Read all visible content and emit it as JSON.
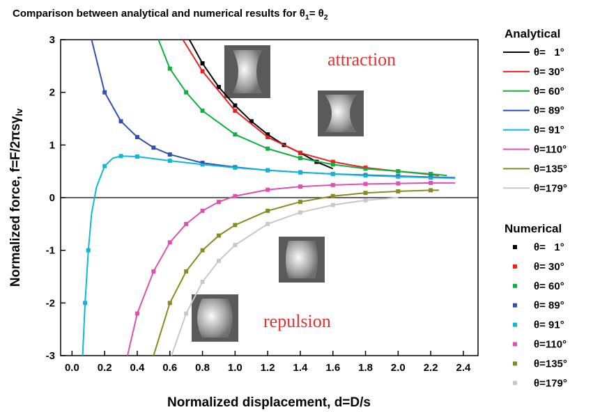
{
  "chart_data": {
    "type": "line",
    "title": [
      "Comparison between analytical and numerical results for θ",
      "1",
      "= θ",
      "2"
    ],
    "xlabel": "Normalized displacement, d=D/s",
    "ylabel": [
      "Normalized force, f=F/2πsγ",
      "lv"
    ],
    "xlim": [
      -0.07,
      2.49
    ],
    "ylim": [
      -3,
      3
    ],
    "xticks": [
      {
        "value": 0,
        "label": "0.0"
      },
      {
        "value": 0.2,
        "label": "0.2"
      },
      {
        "value": 0.4,
        "label": "0.4"
      },
      {
        "value": 0.6,
        "label": "0.6"
      },
      {
        "value": 0.8,
        "label": "0.8"
      },
      {
        "value": 1.0,
        "label": "1.0"
      },
      {
        "value": 1.2,
        "label": "1.2"
      },
      {
        "value": 1.4,
        "label": "1.4"
      },
      {
        "value": 1.6,
        "label": "1.6"
      },
      {
        "value": 1.8,
        "label": "1.8"
      },
      {
        "value": 2.0,
        "label": "2.0"
      },
      {
        "value": 2.2,
        "label": "2.2"
      },
      {
        "value": 2.4,
        "label": "2.4"
      }
    ],
    "yticks": [
      -3,
      -2,
      -1,
      0,
      1,
      2,
      3
    ],
    "annotations": [
      "attraction",
      "repulsion"
    ],
    "analytical": {
      "title": "Analytical",
      "series": [
        {
          "name": "θ=   1°",
          "color": "#000000",
          "x": [
            0.72,
            0.8,
            0.9,
            1.0,
            1.1,
            1.2,
            1.3,
            1.4,
            1.5,
            1.6
          ],
          "values": [
            3,
            2.55,
            2.1,
            1.75,
            1.45,
            1.2,
            1.0,
            0.85,
            0.68,
            0.55
          ]
        },
        {
          "name": "θ= 30°",
          "color": "#f02020",
          "x": [
            0.68,
            0.8,
            1.0,
            1.2,
            1.4,
            1.6,
            1.8,
            2.0,
            2.2,
            2.25
          ],
          "values": [
            3,
            2.4,
            1.65,
            1.15,
            0.85,
            0.68,
            0.57,
            0.5,
            0.44,
            0.42
          ]
        },
        {
          "name": "θ= 60°",
          "color": "#10b040",
          "x": [
            0.53,
            0.6,
            0.7,
            0.8,
            1.0,
            1.2,
            1.4,
            1.6,
            1.8,
            2.0,
            2.2,
            2.3
          ],
          "values": [
            3,
            2.45,
            2.0,
            1.65,
            1.2,
            0.93,
            0.75,
            0.63,
            0.55,
            0.5,
            0.45,
            0.42
          ]
        },
        {
          "name": "θ= 89°",
          "color": "#3050b0",
          "x": [
            0.12,
            0.2,
            0.3,
            0.4,
            0.5,
            0.6,
            0.8,
            1.0,
            1.2,
            1.4,
            1.6,
            1.8,
            2.0,
            2.2,
            2.35
          ],
          "values": [
            3,
            2.0,
            1.45,
            1.15,
            0.95,
            0.82,
            0.66,
            0.58,
            0.52,
            0.48,
            0.45,
            0.43,
            0.41,
            0.39,
            0.38
          ]
        },
        {
          "name": "θ= 91°",
          "color": "#10b8d8",
          "x": [
            0.065,
            0.08,
            0.1,
            0.12,
            0.15,
            0.2,
            0.25,
            0.3,
            0.4,
            0.6,
            0.8,
            1.0,
            1.2,
            1.4,
            1.6,
            1.8,
            2.0,
            2.2,
            2.35
          ],
          "values": [
            -3,
            -2.0,
            -1.0,
            -0.3,
            0.2,
            0.6,
            0.75,
            0.79,
            0.78,
            0.7,
            0.63,
            0.57,
            0.52,
            0.48,
            0.45,
            0.42,
            0.4,
            0.38,
            0.37
          ]
        },
        {
          "name": "θ=110°",
          "color": "#e050b0",
          "x": [
            0.34,
            0.4,
            0.5,
            0.6,
            0.7,
            0.8,
            0.9,
            1.0,
            1.2,
            1.4,
            1.6,
            1.8,
            2.0,
            2.2,
            2.35
          ],
          "values": [
            -3,
            -2.2,
            -1.4,
            -0.85,
            -0.5,
            -0.25,
            -0.08,
            0.03,
            0.15,
            0.21,
            0.24,
            0.26,
            0.27,
            0.28,
            0.28
          ]
        },
        {
          "name": "θ=135°",
          "color": "#8a8a20",
          "x": [
            0.5,
            0.6,
            0.7,
            0.8,
            0.9,
            1.0,
            1.2,
            1.4,
            1.6,
            1.8,
            2.0,
            2.2,
            2.25
          ],
          "values": [
            -3,
            -2.0,
            -1.4,
            -1.0,
            -0.72,
            -0.52,
            -0.25,
            -0.08,
            0.03,
            0.09,
            0.12,
            0.14,
            0.14
          ]
        },
        {
          "name": "θ=179°",
          "color": "#c8c8c8",
          "x": [
            0.61,
            0.7,
            0.8,
            0.9,
            1.0,
            1.2,
            1.4,
            1.6,
            1.8,
            2.0
          ],
          "values": [
            -3,
            -2.2,
            -1.6,
            -1.2,
            -0.9,
            -0.5,
            -0.28,
            -0.14,
            -0.05,
            0.0
          ]
        }
      ]
    },
    "numerical": {
      "title": "Numerical",
      "series": [
        {
          "name": "θ=   1°",
          "color": "#000000",
          "x": [
            0.8,
            0.9,
            1.0,
            1.1,
            1.2,
            1.3,
            1.4,
            1.5
          ],
          "values": [
            2.55,
            2.1,
            1.75,
            1.45,
            1.2,
            1.0,
            0.85,
            0.68
          ]
        },
        {
          "name": "θ= 30°",
          "color": "#f02020",
          "x": [
            0.8,
            1.0,
            1.2,
            1.4,
            1.6,
            1.8,
            2.0,
            2.2
          ],
          "values": [
            2.4,
            1.65,
            1.15,
            0.85,
            0.68,
            0.57,
            0.5,
            0.44
          ]
        },
        {
          "name": "θ= 60°",
          "color": "#10b040",
          "x": [
            0.6,
            0.7,
            0.8,
            1.0,
            1.2,
            1.4,
            1.6,
            1.8,
            2.0,
            2.2
          ],
          "values": [
            2.45,
            2.0,
            1.65,
            1.2,
            0.93,
            0.75,
            0.63,
            0.55,
            0.5,
            0.45
          ]
        },
        {
          "name": "θ= 89°",
          "color": "#3050b0",
          "x": [
            0.2,
            0.3,
            0.4,
            0.5,
            0.6,
            0.8,
            1.0,
            1.2,
            1.4,
            1.6,
            1.8,
            2.0,
            2.2
          ],
          "values": [
            2.0,
            1.45,
            1.15,
            0.95,
            0.82,
            0.66,
            0.58,
            0.52,
            0.48,
            0.45,
            0.43,
            0.41,
            0.39
          ]
        },
        {
          "name": "θ= 91°",
          "color": "#10b8d8",
          "x": [
            0.08,
            0.1,
            0.2,
            0.3,
            0.4,
            0.6,
            0.8,
            1.0,
            1.2,
            1.4,
            1.6,
            1.8,
            2.0,
            2.2
          ],
          "values": [
            -2.0,
            -1.0,
            0.6,
            0.79,
            0.78,
            0.7,
            0.63,
            0.57,
            0.52,
            0.48,
            0.45,
            0.42,
            0.4,
            0.38
          ]
        },
        {
          "name": "θ=110°",
          "color": "#e050b0",
          "x": [
            0.4,
            0.5,
            0.6,
            0.7,
            0.8,
            0.9,
            1.0,
            1.2,
            1.4,
            1.6,
            1.8,
            2.0,
            2.2
          ],
          "values": [
            -2.2,
            -1.4,
            -0.85,
            -0.5,
            -0.25,
            -0.08,
            0.03,
            0.15,
            0.21,
            0.24,
            0.26,
            0.27,
            0.28
          ]
        },
        {
          "name": "θ=135°",
          "color": "#8a8a20",
          "x": [
            0.6,
            0.7,
            0.8,
            0.9,
            1.0,
            1.2,
            1.4,
            1.6,
            1.8,
            2.0,
            2.2
          ],
          "values": [
            -2.0,
            -1.4,
            -1.0,
            -0.72,
            -0.52,
            -0.25,
            -0.08,
            0.03,
            0.09,
            0.12,
            0.14
          ]
        },
        {
          "name": "θ=179°",
          "color": "#c8c8c8",
          "x": [
            0.7,
            0.8,
            0.9,
            1.0,
            1.2,
            1.4,
            1.6,
            1.8
          ],
          "values": [
            -2.2,
            -1.6,
            -1.2,
            -0.9,
            -0.5,
            -0.28,
            -0.14,
            -0.05
          ]
        }
      ]
    }
  }
}
